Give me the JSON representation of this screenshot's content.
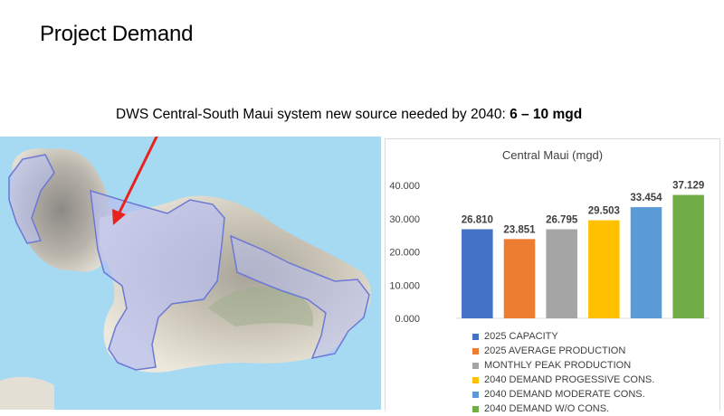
{
  "slide": {
    "title": "Project Demand",
    "callout_prefix": "DWS Central-South Maui system new source needed by 2040: ",
    "callout_bold": "6 – 10 mgd"
  },
  "map": {
    "accent_arrow": "#e8231f",
    "water": "#a6d9f2",
    "land": "#eeeae0",
    "zone_fill": "#b8bff0",
    "zone_stroke": "#6b78d6"
  },
  "chart_data": {
    "type": "bar",
    "title": "Central Maui (mgd)",
    "categories": [
      "2025 CAPACITY",
      "2025 AVERAGE PRODUCTION",
      "MONTHLY PEAK PRODUCTION",
      "2040 DEMAND PROGESSIVE CONS.",
      "2040 DEMAND MODERATE CONS.",
      "2040 DEMAND W/O CONS."
    ],
    "values": [
      26.81,
      23.851,
      26.795,
      29.503,
      33.454,
      37.129
    ],
    "value_labels": [
      "26.810",
      "23.851",
      "26.795",
      "29.503",
      "33.454",
      "37.129"
    ],
    "colors": [
      "#4472c4",
      "#ed7d31",
      "#a5a5a5",
      "#ffc000",
      "#5b9bd5",
      "#70ad47"
    ],
    "ylim": [
      0,
      40
    ],
    "yticks": [
      "0.000",
      "10.000",
      "20.000",
      "30.000",
      "40.000"
    ],
    "legend_position": "bottom",
    "grid": false
  }
}
